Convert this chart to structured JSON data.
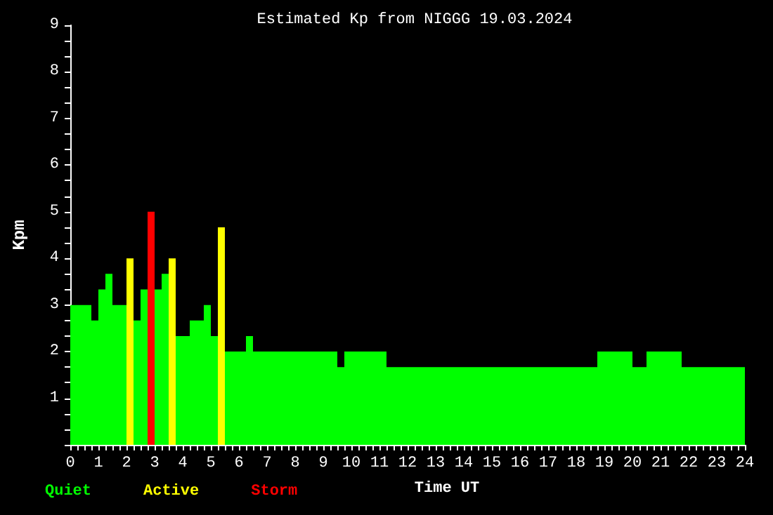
{
  "chart_data": {
    "type": "histogram",
    "title": "Estimated Kp from NIGGG 19.03.2024",
    "xlabel": "Time UT",
    "ylabel": "Kpm",
    "bins": [
      0,
      0.75,
      1,
      1.25,
      1.5,
      2,
      2.25,
      2.5,
      2.75,
      3,
      3.25,
      3.5,
      3.75,
      4.25,
      4.75,
      5,
      5.25,
      5.5,
      6.25,
      6.5,
      9.5,
      9.75,
      11.25,
      18.75,
      20,
      20.5,
      21.75,
      24
    ],
    "series": [
      {
        "name": "Quiet",
        "color": "#00ff00",
        "values": [
          3,
          2.667,
          3.333,
          3.667,
          3,
          null,
          2.667,
          3.333,
          null,
          3.333,
          3.667,
          null,
          2.333,
          2.667,
          3,
          2.333,
          null,
          2,
          2.333,
          2,
          1.667,
          2,
          1.667,
          2,
          1.667,
          2,
          1.667
        ]
      },
      {
        "name": "Active",
        "color": "#ffff00",
        "values": [
          null,
          null,
          null,
          null,
          null,
          4,
          null,
          null,
          null,
          null,
          null,
          4,
          null,
          null,
          null,
          null,
          4.667,
          null,
          null,
          null,
          null,
          null,
          null,
          null,
          null,
          null,
          null
        ]
      },
      {
        "name": "Storm",
        "color": "#ff0000",
        "values": [
          null,
          null,
          null,
          null,
          null,
          null,
          null,
          null,
          5,
          null,
          null,
          null,
          null,
          null,
          null,
          null,
          null,
          null,
          null,
          null,
          null,
          null,
          null,
          null,
          null,
          null,
          null
        ]
      }
    ],
    "xlim": [
      0,
      24
    ],
    "ylim": [
      0,
      9
    ],
    "xticks": [
      0,
      {
        "value": 0.25,
        "label": null
      },
      {
        "value": 0.5,
        "label": null
      },
      {
        "value": 0.75,
        "label": null
      },
      1,
      {
        "value": 1.25,
        "label": null
      },
      {
        "value": 1.5,
        "label": null
      },
      {
        "value": 1.75,
        "label": null
      },
      2,
      {
        "value": 2.25,
        "label": null
      },
      {
        "value": 2.5,
        "label": null
      },
      {
        "value": 2.75,
        "label": null
      },
      3,
      {
        "value": 3.25,
        "label": null
      },
      {
        "value": 3.5,
        "label": null
      },
      {
        "value": 3.75,
        "label": null
      },
      4,
      {
        "value": 4.25,
        "label": null
      },
      {
        "value": 4.5,
        "label": null
      },
      {
        "value": 4.75,
        "label": null
      },
      5,
      {
        "value": 5.25,
        "label": null
      },
      {
        "value": 5.5,
        "label": null
      },
      {
        "value": 5.75,
        "label": null
      },
      6,
      {
        "value": 6.25,
        "label": null
      },
      {
        "value": 6.5,
        "label": null
      },
      {
        "value": 6.75,
        "label": null
      },
      7,
      {
        "value": 7.25,
        "label": null
      },
      {
        "value": 7.5,
        "label": null
      },
      {
        "value": 7.75,
        "label": null
      },
      8,
      {
        "value": 8.25,
        "label": null
      },
      {
        "value": 8.5,
        "label": null
      },
      {
        "value": 8.75,
        "label": null
      },
      9,
      {
        "value": 9.25,
        "label": null
      },
      {
        "value": 9.5,
        "label": null
      },
      {
        "value": 9.75,
        "label": null
      },
      10,
      {
        "value": 10.25,
        "label": null
      },
      {
        "value": 10.5,
        "label": null
      },
      {
        "value": 10.75,
        "label": null
      },
      11,
      {
        "value": 11.25,
        "label": null
      },
      {
        "value": 11.5,
        "label": null
      },
      {
        "value": 11.75,
        "label": null
      },
      12,
      {
        "value": 12.25,
        "label": null
      },
      {
        "value": 12.5,
        "label": null
      },
      {
        "value": 12.75,
        "label": null
      },
      13,
      {
        "value": 13.25,
        "label": null
      },
      {
        "value": 13.5,
        "label": null
      },
      {
        "value": 13.75,
        "label": null
      },
      14,
      {
        "value": 14.25,
        "label": null
      },
      {
        "value": 14.5,
        "label": null
      },
      {
        "value": 14.75,
        "label": null
      },
      15,
      {
        "value": 15.25,
        "label": null
      },
      {
        "value": 15.5,
        "label": null
      },
      {
        "value": 15.75,
        "label": null
      },
      16,
      {
        "value": 16.25,
        "label": null
      },
      {
        "value": 16.5,
        "label": null
      },
      {
        "value": 16.75,
        "label": null
      },
      17,
      {
        "value": 17.25,
        "label": null
      },
      {
        "value": 17.5,
        "label": null
      },
      {
        "value": 17.75,
        "label": null
      },
      18,
      {
        "value": 18.25,
        "label": null
      },
      {
        "value": 18.5,
        "label": null
      },
      {
        "value": 18.75,
        "label": null
      },
      19,
      {
        "value": 19.25,
        "label": null
      },
      {
        "value": 19.5,
        "label": null
      },
      {
        "value": 19.75,
        "label": null
      },
      20,
      {
        "value": 20.25,
        "label": null
      },
      {
        "value": 20.5,
        "label": null
      },
      {
        "value": 20.75,
        "label": null
      },
      21,
      {
        "value": 21.25,
        "label": null
      },
      {
        "value": 21.5,
        "label": null
      },
      {
        "value": 21.75,
        "label": null
      },
      22,
      {
        "value": 22.25,
        "label": null
      },
      {
        "value": 22.5,
        "label": null
      },
      {
        "value": 22.75,
        "label": null
      },
      23,
      {
        "value": 23.25,
        "label": null
      },
      {
        "value": 23.5,
        "label": null
      },
      {
        "value": 23.75,
        "label": null
      },
      24
    ],
    "yticks": [
      {
        "value": 0,
        "label": null
      },
      {
        "value": 0.333,
        "label": null
      },
      {
        "value": 0.667,
        "label": null
      },
      1,
      {
        "value": 1.333,
        "label": null
      },
      {
        "value": 1.667,
        "label": null
      },
      2,
      {
        "value": 2.333,
        "label": null
      },
      {
        "value": 2.667,
        "label": null
      },
      3,
      {
        "value": 3.333,
        "label": null
      },
      {
        "value": 3.667,
        "label": null
      },
      4,
      {
        "value": 4.333,
        "label": null
      },
      {
        "value": 4.667,
        "label": null
      },
      5,
      {
        "value": 5.333,
        "label": null
      },
      {
        "value": 5.667,
        "label": null
      },
      6,
      {
        "value": 6.333,
        "label": null
      },
      {
        "value": 6.667,
        "label": null
      },
      7,
      {
        "value": 7.333,
        "label": null
      },
      {
        "value": 7.667,
        "label": null
      },
      8,
      {
        "value": 8.333,
        "label": null
      },
      {
        "value": 8.667,
        "label": null
      },
      9
    ],
    "legend": "bottom left",
    "grid": false
  }
}
